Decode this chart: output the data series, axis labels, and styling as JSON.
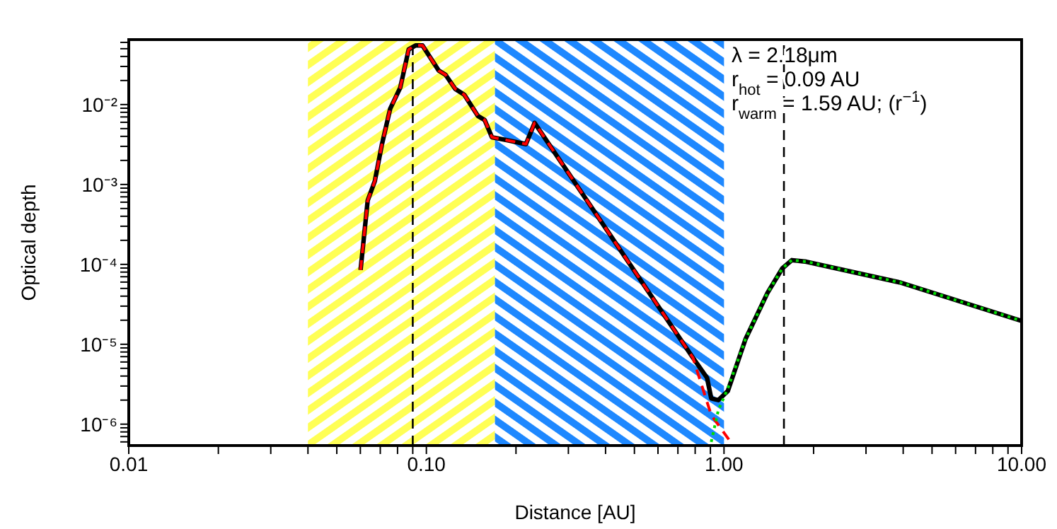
{
  "chart_data": {
    "type": "line",
    "xlabel": "Distance [AU]",
    "ylabel": "Optical depth",
    "log": "xy",
    "marker": "none",
    "xlim": [
      0.01,
      10
    ],
    "ylim": [
      5.4e-07,
      0.065
    ],
    "xticks": [
      0.01,
      {
        "value": 0.02,
        "label": null
      },
      {
        "value": 0.03,
        "label": null
      },
      {
        "value": 0.04,
        "label": null
      },
      {
        "value": 0.05,
        "label": null
      },
      {
        "value": 0.06,
        "label": null
      },
      {
        "value": 0.07,
        "label": null
      },
      {
        "value": 0.08,
        "label": null
      },
      {
        "value": 0.09,
        "label": null
      },
      {
        "value": 0.1,
        "label": "0.10"
      },
      {
        "value": 0.2,
        "label": null
      },
      {
        "value": 0.3,
        "label": null
      },
      {
        "value": 0.4,
        "label": null
      },
      {
        "value": 0.5,
        "label": null
      },
      {
        "value": 0.6,
        "label": null
      },
      {
        "value": 0.7,
        "label": null
      },
      {
        "value": 0.8,
        "label": null
      },
      {
        "value": 0.9,
        "label": null
      },
      {
        "value": 1,
        "label": "1.00"
      },
      {
        "value": 2,
        "label": null
      },
      {
        "value": 3,
        "label": null
      },
      {
        "value": 4,
        "label": null
      },
      {
        "value": 5,
        "label": null
      },
      {
        "value": 6,
        "label": null
      },
      {
        "value": 7,
        "label": null
      },
      {
        "value": 8,
        "label": null
      },
      {
        "value": 9,
        "label": null
      },
      {
        "value": 10,
        "label": "10.00"
      }
    ],
    "yticks": [
      {
        "value": 6e-07,
        "label": null
      },
      {
        "value": 7e-07,
        "label": null
      },
      {
        "value": 8e-07,
        "label": null
      },
      {
        "value": 9e-07,
        "label": null
      },
      {
        "value": 1e-06,
        "label": "10⁻⁶"
      },
      {
        "value": 2e-06,
        "label": null
      },
      {
        "value": 3e-06,
        "label": null
      },
      {
        "value": 4e-06,
        "label": null
      },
      {
        "value": 5e-06,
        "label": null
      },
      {
        "value": 6e-06,
        "label": null
      },
      {
        "value": 7e-06,
        "label": null
      },
      {
        "value": 8e-06,
        "label": null
      },
      {
        "value": 9e-06,
        "label": null
      },
      {
        "value": 1e-05,
        "label": "10⁻⁵"
      },
      {
        "value": 2e-05,
        "label": null
      },
      {
        "value": 3e-05,
        "label": null
      },
      {
        "value": 4e-05,
        "label": null
      },
      {
        "value": 5e-05,
        "label": null
      },
      {
        "value": 6e-05,
        "label": null
      },
      {
        "value": 7e-05,
        "label": null
      },
      {
        "value": 8e-05,
        "label": null
      },
      {
        "value": 9e-05,
        "label": null
      },
      {
        "value": 0.0001,
        "label": "10⁻⁴"
      },
      {
        "value": 0.0002,
        "label": null
      },
      {
        "value": 0.0003,
        "label": null
      },
      {
        "value": 0.0004,
        "label": null
      },
      {
        "value": 0.0005,
        "label": null
      },
      {
        "value": 0.0006,
        "label": null
      },
      {
        "value": 0.0007,
        "label": null
      },
      {
        "value": 0.0008,
        "label": null
      },
      {
        "value": 0.0009,
        "label": null
      },
      {
        "value": 0.001,
        "label": "10⁻³"
      },
      {
        "value": 0.002,
        "label": null
      },
      {
        "value": 0.003,
        "label": null
      },
      {
        "value": 0.004,
        "label": null
      },
      {
        "value": 0.005,
        "label": null
      },
      {
        "value": 0.006,
        "label": null
      },
      {
        "value": 0.007,
        "label": null
      },
      {
        "value": 0.008,
        "label": null
      },
      {
        "value": 0.009,
        "label": null
      },
      {
        "value": 0.01,
        "label": "10⁻²"
      },
      {
        "value": 0.02,
        "label": null
      },
      {
        "value": 0.03,
        "label": null
      },
      {
        "value": 0.04,
        "label": null
      },
      {
        "value": 0.05,
        "label": null
      },
      {
        "value": 0.06,
        "label": null
      }
    ],
    "series": [
      {
        "color": "#000000",
        "line_style": "solid",
        "x": [
          0.0601,
          0.0635,
          0.0671,
          0.0708,
          0.0756,
          0.0817,
          0.0872,
          0.092,
          0.097,
          0.11,
          0.116,
          0.125,
          0.134,
          0.149,
          0.157,
          0.166,
          0.185,
          0.216,
          0.231,
          0.786,
          0.877,
          0.906,
          0.957,
          1.03,
          1.18,
          1.4,
          1.57,
          1.69,
          1.89,
          3.93,
          10
        ],
        "values": [
          8.5e-05,
          0.00063,
          0.0011,
          0.0031,
          0.0089,
          0.0163,
          0.049,
          0.055,
          0.055,
          0.0266,
          0.0236,
          0.0157,
          0.0133,
          0.0072,
          0.0064,
          0.0039,
          0.0036,
          0.0032,
          0.0059,
          6.8e-06,
          3.8e-06,
          2.1e-06,
          2e-06,
          2.6e-06,
          1.15e-05,
          4.4e-05,
          8.9e-05,
          0.000113,
          0.000108,
          5.9e-05,
          1.96e-05
        ]
      },
      {
        "color": "#ff0000",
        "line_style": "dashed",
        "x": [
          0.0601,
          0.0635,
          0.0671,
          0.0708,
          0.0756,
          0.0817,
          0.0872,
          0.092,
          0.097,
          0.11,
          0.116,
          0.125,
          0.134,
          0.149,
          0.157,
          0.166,
          0.185,
          0.216,
          0.231,
          0.786,
          0.906,
          1.07
        ],
        "values": [
          8.5e-05,
          0.00063,
          0.0011,
          0.0031,
          0.0089,
          0.0163,
          0.049,
          0.055,
          0.055,
          0.0266,
          0.0236,
          0.0157,
          0.0133,
          0.0072,
          0.0064,
          0.0039,
          0.0036,
          0.0032,
          0.0059,
          6.8e-06,
          1.3e-06,
          5.5e-07
        ]
      },
      {
        "color": "#00dd00",
        "line_style": "dotted",
        "x": [
          0.906,
          0.957,
          1.03,
          1.18,
          1.4,
          1.57,
          1.69,
          1.89,
          3.93,
          10
        ],
        "values": [
          6e-07,
          1.5e-06,
          2.8e-06,
          1.15e-05,
          4.4e-05,
          8.9e-05,
          0.000113,
          0.000108,
          5.9e-05,
          1.96e-05
        ]
      }
    ],
    "bands": [
      {
        "axis": "x",
        "from": 0.04,
        "to": 0.17,
        "color": "#ffff55"
      },
      {
        "axis": "x",
        "from": 0.17,
        "to": 1.0,
        "color": "#1e88ff"
      }
    ],
    "ref_lines": [
      {
        "axis": "x",
        "value": 0.09,
        "color": "#000000",
        "line_style": "dashed"
      },
      {
        "axis": "x",
        "value": 1.59,
        "color": "#000000",
        "line_style": "dashed"
      }
    ],
    "annotations": [
      "λ = 2.18μm",
      "r$_{hot}$ = 0.09 AU",
      "r$_{warm}$ = 1.59 AU; (r$^{−1}$)"
    ]
  }
}
